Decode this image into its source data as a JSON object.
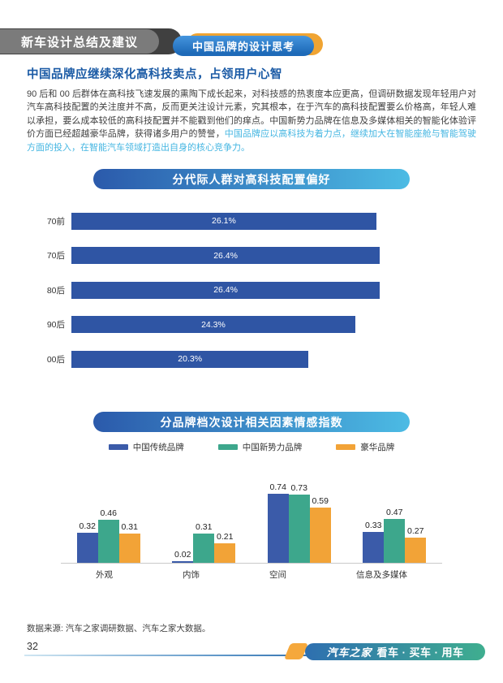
{
  "page": {
    "header": {
      "main_title": "新车设计总结及建议",
      "sub_title": "中国品牌的设计思考"
    },
    "heading": "中国品牌应继续深化高科技卖点，占领用户心智",
    "paragraph": {
      "normal": "90 后和 00 后群体在高科技飞速发展的熏陶下成长起来，对科技感的热衷度本应更高，但调研数据发现年轻用户对汽车高科技配置的关注度并不高，反而更关注设计元素，究其根本，在于汽车的高科技配置要么价格高，年轻人难以承担，要么成本较低的高科技配置并不能戳到他们的痒点。中国新势力品牌在信息及多媒体相关的智能化体验评价方面已经超越豪华品牌，获得诸多用户的赞誉，",
      "highlight": "中国品牌应以高科技为着力点，继续加大在智能座舱与智能驾驶方面的投入，在智能汽车领域打造出自身的核心竞争力。"
    },
    "footer": {
      "source": "数据来源: 汽车之家调研数据、汽车之家大数据。",
      "page_number": "32",
      "brand": "汽车之家",
      "tagline": "看车 · 买车 · 用车"
    }
  },
  "colors": {
    "heading_blue": "#1a5aa5",
    "highlight_cyan": "#45b6e2",
    "pill_gradient_start": "#2b5aab",
    "pill_gradient_end": "#4cbbe4",
    "header_gray": "#7b7b7b",
    "header_tab_blue": "#2b7ecb",
    "header_accent_orange": "#f0a432"
  },
  "chart_data": [
    {
      "type": "bar",
      "orientation": "horizontal",
      "title": "分代际人群对高科技配置偏好",
      "categories": [
        "70前",
        "70后",
        "80后",
        "90后",
        "00后"
      ],
      "values": [
        26.1,
        26.4,
        26.4,
        24.3,
        20.3
      ],
      "unit": "%",
      "bar_color": "#2f55a4",
      "xlim": [
        0,
        29
      ],
      "value_labels_inside": true,
      "grid": false
    },
    {
      "type": "bar",
      "orientation": "vertical",
      "title": "分品牌档次设计相关因素情感指数",
      "categories": [
        "外观",
        "内饰",
        "空间",
        "信息及多媒体"
      ],
      "series": [
        {
          "name": "中国传统品牌",
          "color": "#3b5ba9",
          "values": [
            0.32,
            0.02,
            0.74,
            0.33
          ]
        },
        {
          "name": "中国新势力品牌",
          "color": "#3da78c",
          "values": [
            0.46,
            0.31,
            0.73,
            0.47
          ]
        },
        {
          "name": "豪华品牌",
          "color": "#f2a337",
          "values": [
            0.31,
            0.21,
            0.59,
            0.27
          ]
        }
      ],
      "ylim": [
        0,
        0.85
      ],
      "legend_position": "top",
      "grid": false
    }
  ]
}
